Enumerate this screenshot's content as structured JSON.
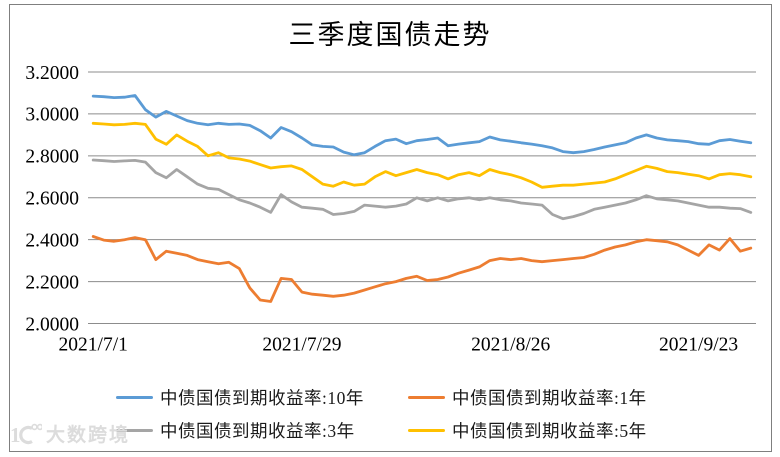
{
  "title": "三季度国债走势",
  "watermark": {
    "logo": "10100-logo",
    "text": "大数跨境"
  },
  "colors": {
    "grid": "#8c8c8c",
    "frame": "#7f7f7f",
    "axis_text": "#000000",
    "watermark": "#dcdcdc"
  },
  "chart_data": {
    "type": "line",
    "title": "三季度国债走势",
    "xlabel": "",
    "ylabel": "",
    "ylim": [
      2.0,
      3.2
    ],
    "grid": true,
    "legend_position": "bottom",
    "y_ticks": [
      "3.2000",
      "3.0000",
      "2.8000",
      "2.6000",
      "2.4000",
      "2.2000",
      "2.0000"
    ],
    "x_axis_ticks": [
      {
        "index": 0,
        "label": "2021/7/1"
      },
      {
        "index": 20,
        "label": "2021/7/29"
      },
      {
        "index": 40,
        "label": "2021/8/26"
      },
      {
        "index": 58,
        "label": "2021/9/23"
      }
    ],
    "dates": [
      "2021/7/1",
      "2021/7/2",
      "2021/7/5",
      "2021/7/6",
      "2021/7/7",
      "2021/7/8",
      "2021/7/9",
      "2021/7/12",
      "2021/7/13",
      "2021/7/14",
      "2021/7/15",
      "2021/7/16",
      "2021/7/19",
      "2021/7/20",
      "2021/7/21",
      "2021/7/22",
      "2021/7/23",
      "2021/7/26",
      "2021/7/27",
      "2021/7/28",
      "2021/7/29",
      "2021/7/30",
      "2021/8/2",
      "2021/8/3",
      "2021/8/4",
      "2021/8/5",
      "2021/8/6",
      "2021/8/9",
      "2021/8/10",
      "2021/8/11",
      "2021/8/12",
      "2021/8/13",
      "2021/8/16",
      "2021/8/17",
      "2021/8/18",
      "2021/8/19",
      "2021/8/20",
      "2021/8/23",
      "2021/8/24",
      "2021/8/25",
      "2021/8/26",
      "2021/8/27",
      "2021/8/30",
      "2021/8/31",
      "2021/9/1",
      "2021/9/2",
      "2021/9/3",
      "2021/9/6",
      "2021/9/7",
      "2021/9/8",
      "2021/9/9",
      "2021/9/10",
      "2021/9/13",
      "2021/9/14",
      "2021/9/15",
      "2021/9/16",
      "2021/9/17",
      "2021/9/22",
      "2021/9/23",
      "2021/9/24",
      "2021/9/27",
      "2021/9/28",
      "2021/9/29",
      "2021/9/30"
    ],
    "series": [
      {
        "key": "10y",
        "name": "中债国债到期收益率:10年",
        "color": "#5B9BD5",
        "values": [
          3.085,
          3.082,
          3.078,
          3.08,
          3.088,
          3.02,
          2.985,
          3.012,
          2.99,
          2.968,
          2.955,
          2.948,
          2.955,
          2.95,
          2.952,
          2.945,
          2.92,
          2.885,
          2.935,
          2.915,
          2.885,
          2.852,
          2.845,
          2.842,
          2.818,
          2.805,
          2.815,
          2.845,
          2.872,
          2.88,
          2.858,
          2.872,
          2.878,
          2.885,
          2.848,
          2.856,
          2.862,
          2.868,
          2.89,
          2.876,
          2.87,
          2.862,
          2.856,
          2.848,
          2.838,
          2.82,
          2.815,
          2.82,
          2.83,
          2.842,
          2.852,
          2.862,
          2.885,
          2.9,
          2.885,
          2.876,
          2.872,
          2.868,
          2.858,
          2.855,
          2.872,
          2.878,
          2.87,
          2.862
        ]
      },
      {
        "key": "1y",
        "name": "中债国债到期收益率:1年",
        "color": "#ED7D31",
        "values": [
          2.415,
          2.398,
          2.392,
          2.4,
          2.41,
          2.4,
          2.305,
          2.345,
          2.335,
          2.325,
          2.305,
          2.295,
          2.285,
          2.292,
          2.262,
          2.17,
          2.112,
          2.105,
          2.215,
          2.21,
          2.15,
          2.14,
          2.135,
          2.13,
          2.135,
          2.145,
          2.16,
          2.175,
          2.19,
          2.2,
          2.215,
          2.225,
          2.205,
          2.21,
          2.222,
          2.24,
          2.255,
          2.27,
          2.3,
          2.31,
          2.305,
          2.31,
          2.3,
          2.295,
          2.3,
          2.305,
          2.31,
          2.315,
          2.33,
          2.35,
          2.365,
          2.375,
          2.39,
          2.4,
          2.395,
          2.39,
          2.375,
          2.35,
          2.325,
          2.375,
          2.35,
          2.405,
          2.345,
          2.36
        ]
      },
      {
        "key": "3y",
        "name": "中债国债到期收益率:3年",
        "color": "#A5A5A5",
        "values": [
          2.78,
          2.777,
          2.773,
          2.776,
          2.778,
          2.77,
          2.72,
          2.695,
          2.735,
          2.7,
          2.665,
          2.645,
          2.64,
          2.615,
          2.59,
          2.575,
          2.555,
          2.53,
          2.615,
          2.58,
          2.555,
          2.55,
          2.545,
          2.52,
          2.525,
          2.535,
          2.565,
          2.56,
          2.555,
          2.56,
          2.57,
          2.6,
          2.585,
          2.6,
          2.585,
          2.595,
          2.6,
          2.59,
          2.6,
          2.59,
          2.585,
          2.575,
          2.57,
          2.565,
          2.52,
          2.5,
          2.51,
          2.525,
          2.545,
          2.555,
          2.565,
          2.575,
          2.59,
          2.61,
          2.595,
          2.59,
          2.585,
          2.575,
          2.565,
          2.555,
          2.555,
          2.55,
          2.548,
          2.53
        ]
      },
      {
        "key": "5y",
        "name": "中债国债到期收益率:5年",
        "color": "#FFC000",
        "values": [
          2.955,
          2.952,
          2.948,
          2.95,
          2.955,
          2.95,
          2.88,
          2.855,
          2.9,
          2.87,
          2.845,
          2.8,
          2.815,
          2.79,
          2.785,
          2.775,
          2.758,
          2.742,
          2.748,
          2.752,
          2.735,
          2.7,
          2.665,
          2.655,
          2.675,
          2.66,
          2.665,
          2.7,
          2.725,
          2.705,
          2.72,
          2.735,
          2.72,
          2.71,
          2.69,
          2.71,
          2.72,
          2.705,
          2.735,
          2.72,
          2.71,
          2.695,
          2.675,
          2.65,
          2.655,
          2.66,
          2.66,
          2.665,
          2.67,
          2.675,
          2.69,
          2.71,
          2.73,
          2.75,
          2.74,
          2.725,
          2.72,
          2.712,
          2.705,
          2.69,
          2.71,
          2.715,
          2.71,
          2.7
        ]
      }
    ]
  }
}
